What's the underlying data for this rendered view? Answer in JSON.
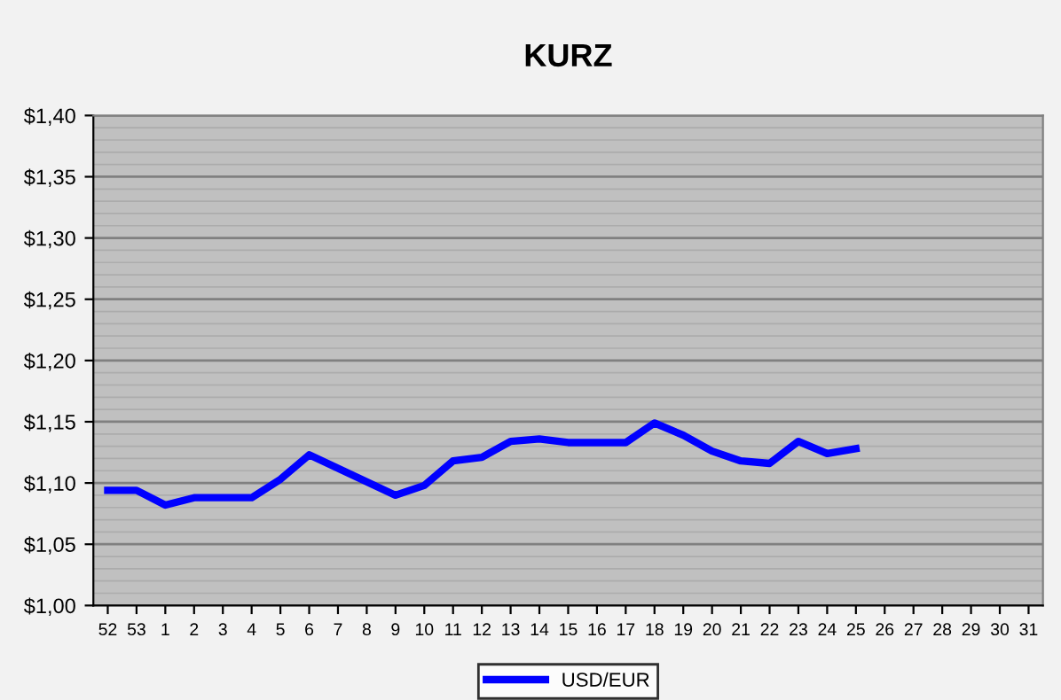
{
  "chart_data": {
    "type": "line",
    "title": "KURZ",
    "categories": [
      "52",
      "53",
      "1",
      "2",
      "3",
      "4",
      "5",
      "6",
      "7",
      "8",
      "9",
      "10",
      "11",
      "12",
      "13",
      "14",
      "15",
      "16",
      "17",
      "18",
      "19",
      "20",
      "21",
      "22",
      "23",
      "24",
      "25",
      "26",
      "27",
      "28",
      "29",
      "30",
      "31"
    ],
    "series": [
      {
        "name": "USD/EUR",
        "color": "#0000ff",
        "values": [
          1.094,
          1.094,
          1.082,
          1.088,
          1.088,
          1.088,
          1.103,
          1.123,
          1.112,
          1.101,
          1.09,
          1.098,
          1.118,
          1.121,
          1.134,
          1.136,
          1.133,
          1.133,
          1.133,
          1.149,
          1.139,
          1.126,
          1.118,
          1.116,
          1.134,
          1.124,
          1.128,
          null,
          null,
          null,
          null,
          null,
          null
        ]
      }
    ],
    "ylim": [
      1.0,
      1.4
    ],
    "yticks": [
      {
        "value": 1.0,
        "label": "$1,00"
      },
      {
        "value": 1.05,
        "label": "$1,05"
      },
      {
        "value": 1.1,
        "label": "$1,10"
      },
      {
        "value": 1.15,
        "label": "$1,15"
      },
      {
        "value": 1.2,
        "label": "$1,20"
      },
      {
        "value": 1.25,
        "label": "$1,25"
      },
      {
        "value": 1.3,
        "label": "$1,30"
      },
      {
        "value": 1.35,
        "label": "$1,35"
      },
      {
        "value": 1.4,
        "label": "$1,40"
      }
    ],
    "grid": "y",
    "legend": "bottom",
    "marker": "none",
    "line_style": "solid"
  }
}
